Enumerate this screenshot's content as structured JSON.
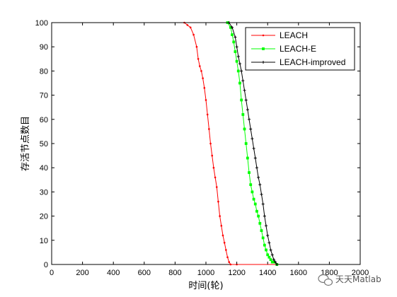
{
  "chart_data": {
    "type": "line",
    "xlabel": "时间(轮)",
    "ylabel": "存活节点数目",
    "xlim": [
      0,
      2000
    ],
    "ylim": [
      0,
      100
    ],
    "xticks": [
      0,
      200,
      400,
      600,
      800,
      1000,
      1200,
      1400,
      1600,
      1800,
      2000
    ],
    "yticks": [
      0,
      10,
      20,
      30,
      40,
      50,
      60,
      70,
      80,
      90,
      100
    ],
    "grid": false,
    "legend_position": "top-right",
    "series": [
      {
        "name": "LEACH",
        "color": "#ff0000",
        "marker": "dot",
        "x": [
          0,
          860,
          880,
          900,
          920,
          940,
          950,
          960,
          970,
          980,
          990,
          1000,
          1010,
          1020,
          1030,
          1040,
          1050,
          1060,
          1070,
          1080,
          1090,
          1100,
          1110,
          1120,
          1130,
          1140,
          1150,
          1160,
          1200,
          2000
        ],
        "y": [
          100,
          100,
          99,
          98,
          95,
          90,
          85,
          82,
          80,
          77,
          73,
          68,
          62,
          56,
          50,
          45,
          40,
          36,
          32,
          26,
          20,
          16,
          12,
          9,
          6,
          3,
          1,
          0,
          0,
          0
        ]
      },
      {
        "name": "LEACH-E",
        "color": "#00ff00",
        "marker": "square",
        "x": [
          0,
          1140,
          1160,
          1170,
          1180,
          1190,
          1200,
          1210,
          1220,
          1230,
          1240,
          1250,
          1260,
          1270,
          1280,
          1290,
          1300,
          1310,
          1320,
          1330,
          1340,
          1350,
          1360,
          1370,
          1380,
          1390,
          1400,
          1410,
          1420,
          1430,
          1440,
          1460,
          2000
        ],
        "y": [
          100,
          100,
          98,
          95,
          92,
          88,
          84,
          80,
          75,
          68,
          62,
          56,
          50,
          44,
          38,
          33,
          30,
          27,
          25,
          22,
          20,
          17,
          14,
          11,
          8,
          6,
          4,
          3,
          2,
          1,
          1,
          0,
          0
        ]
      },
      {
        "name": "LEACH-improved",
        "color": "#000000",
        "marker": "plus",
        "x": [
          0,
          1150,
          1170,
          1190,
          1200,
          1210,
          1220,
          1230,
          1240,
          1250,
          1260,
          1270,
          1280,
          1290,
          1300,
          1310,
          1320,
          1330,
          1340,
          1350,
          1360,
          1370,
          1380,
          1390,
          1400,
          1410,
          1420,
          1430,
          1440,
          1450,
          1460,
          2000
        ],
        "y": [
          100,
          100,
          98,
          94,
          90,
          86,
          83,
          80,
          76,
          72,
          68,
          64,
          60,
          56,
          52,
          48,
          44,
          40,
          36,
          33,
          29,
          25,
          20,
          16,
          12,
          9,
          6,
          4,
          2,
          1,
          0,
          0
        ]
      }
    ]
  },
  "watermark": {
    "icon": "wechat-icon",
    "text": "天天Matlab"
  }
}
